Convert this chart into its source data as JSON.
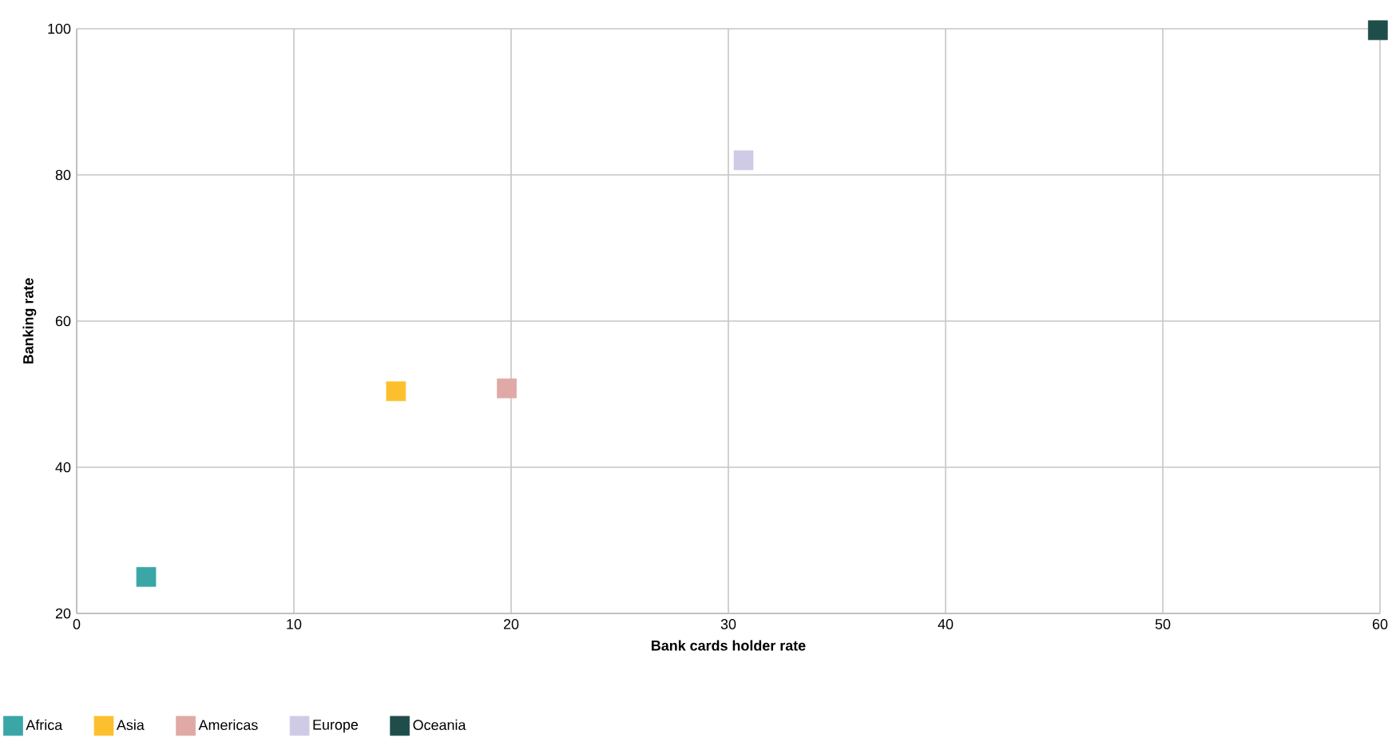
{
  "chart_data": {
    "type": "scatter",
    "xlabel": "Bank cards holder rate",
    "ylabel": "Banking rate",
    "series": [
      {
        "name": "Africa",
        "color": "#3aa6a6",
        "x": [
          3.2
        ],
        "values": [
          25
        ]
      },
      {
        "name": "Asia",
        "color": "#fcc02e",
        "x": [
          14.7
        ],
        "values": [
          50.4
        ]
      },
      {
        "name": "Americas",
        "color": "#e0a9a5",
        "x": [
          19.8
        ],
        "values": [
          50.8
        ]
      },
      {
        "name": "Europe",
        "color": "#cfcbe6",
        "x": [
          30.7
        ],
        "values": [
          82
        ]
      },
      {
        "name": "Oceania",
        "color": "#1f4d4a",
        "x": [
          59.9
        ],
        "values": [
          99.8
        ]
      }
    ],
    "xlim": [
      0,
      60
    ],
    "ylim": [
      20,
      100
    ],
    "xticks": [
      0,
      10,
      20,
      30,
      40,
      50,
      60
    ],
    "yticks": [
      20,
      40,
      60,
      80,
      100
    ],
    "grid": true,
    "legend": "bottom left",
    "marker": "square"
  }
}
